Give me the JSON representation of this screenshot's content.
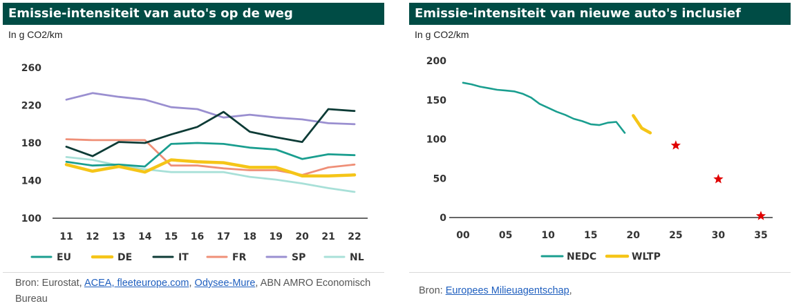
{
  "left": {
    "title": "Emissie-intensiteit van auto's op de weg",
    "unit": "In g CO2/km",
    "source": {
      "prefix": "Bron: Eurostat, ",
      "links": [
        "ACEA, fleeteurope.com",
        "Odysee-Mure"
      ],
      "comma": ", ",
      "suffix": ", ABN AMRO Economisch Bureau"
    }
  },
  "right": {
    "title": "Emissie-intensiteit van nieuwe auto's inclusief",
    "unit": "In g CO2/km",
    "source": {
      "prefix": "Bron: ",
      "link": "Europees Milieuagentschap",
      "suffix": ","
    }
  },
  "chart_data": [
    {
      "type": "line",
      "title": "Emissie-intensiteit van auto's op de weg",
      "ylabel": "In g CO2/km",
      "categories": [
        "11",
        "12",
        "13",
        "14",
        "15",
        "16",
        "17",
        "18",
        "19",
        "20",
        "21",
        "22"
      ],
      "ylim": [
        100,
        260
      ],
      "yticks": [
        "100",
        "140",
        "180",
        "220",
        "260"
      ],
      "grid": false,
      "legend": "bottom",
      "series": [
        {
          "name": "EU",
          "color": "#1a9e8f",
          "values": [
            160,
            156,
            157,
            155,
            179,
            180,
            179,
            175,
            173,
            163,
            168,
            167
          ]
        },
        {
          "name": "DE",
          "color": "#f5c518",
          "values": [
            157,
            150,
            155,
            149,
            162,
            160,
            159,
            154,
            154,
            145,
            145,
            146
          ]
        },
        {
          "name": "IT",
          "color": "#0d3b36",
          "values": [
            176,
            166,
            181,
            180,
            189,
            197,
            213,
            192,
            186,
            181,
            216,
            214
          ]
        },
        {
          "name": "FR",
          "color": "#ef8f77",
          "values": [
            184,
            183,
            183,
            183,
            156,
            156,
            153,
            151,
            151,
            146,
            154,
            157
          ]
        },
        {
          "name": "SP",
          "color": "#9a8fd0",
          "values": [
            226,
            233,
            229,
            226,
            218,
            216,
            207,
            210,
            207,
            205,
            201,
            200
          ]
        },
        {
          "name": "NL",
          "color": "#a8e0d8",
          "values": [
            165,
            162,
            156,
            152,
            149,
            149,
            149,
            144,
            141,
            137,
            132,
            128
          ]
        }
      ]
    },
    {
      "type": "line",
      "title": "Emissie-intensiteit van nieuwe auto's inclusief",
      "ylabel": "In g CO2/km",
      "xticks": [
        "00",
        "05",
        "10",
        "15",
        "20",
        "25",
        "30",
        "35"
      ],
      "xlim": [
        0,
        35
      ],
      "ylim": [
        0,
        200
      ],
      "yticks": [
        "0",
        "50",
        "100",
        "150",
        "200"
      ],
      "grid": false,
      "legend": "bottom",
      "series": [
        {
          "name": "NEDC",
          "color": "#1a9e8f",
          "x": [
            0,
            1,
            2,
            3,
            4,
            5,
            6,
            7,
            8,
            9,
            10,
            11,
            12,
            13,
            14,
            15,
            16,
            17,
            18,
            19
          ],
          "values": [
            172,
            170,
            167,
            165,
            163,
            162,
            161,
            158,
            153,
            145,
            140,
            135,
            131,
            126,
            123,
            119,
            118,
            121,
            122,
            108
          ]
        },
        {
          "name": "WLTP",
          "color": "#f5c518",
          "x": [
            20,
            21,
            22
          ],
          "values": [
            130,
            114,
            108
          ]
        }
      ],
      "markers": {
        "symbol": "star",
        "color": "#e00000",
        "points": [
          {
            "x": 25,
            "y": 92
          },
          {
            "x": 30,
            "y": 49
          },
          {
            "x": 35,
            "y": 2
          }
        ]
      }
    }
  ]
}
